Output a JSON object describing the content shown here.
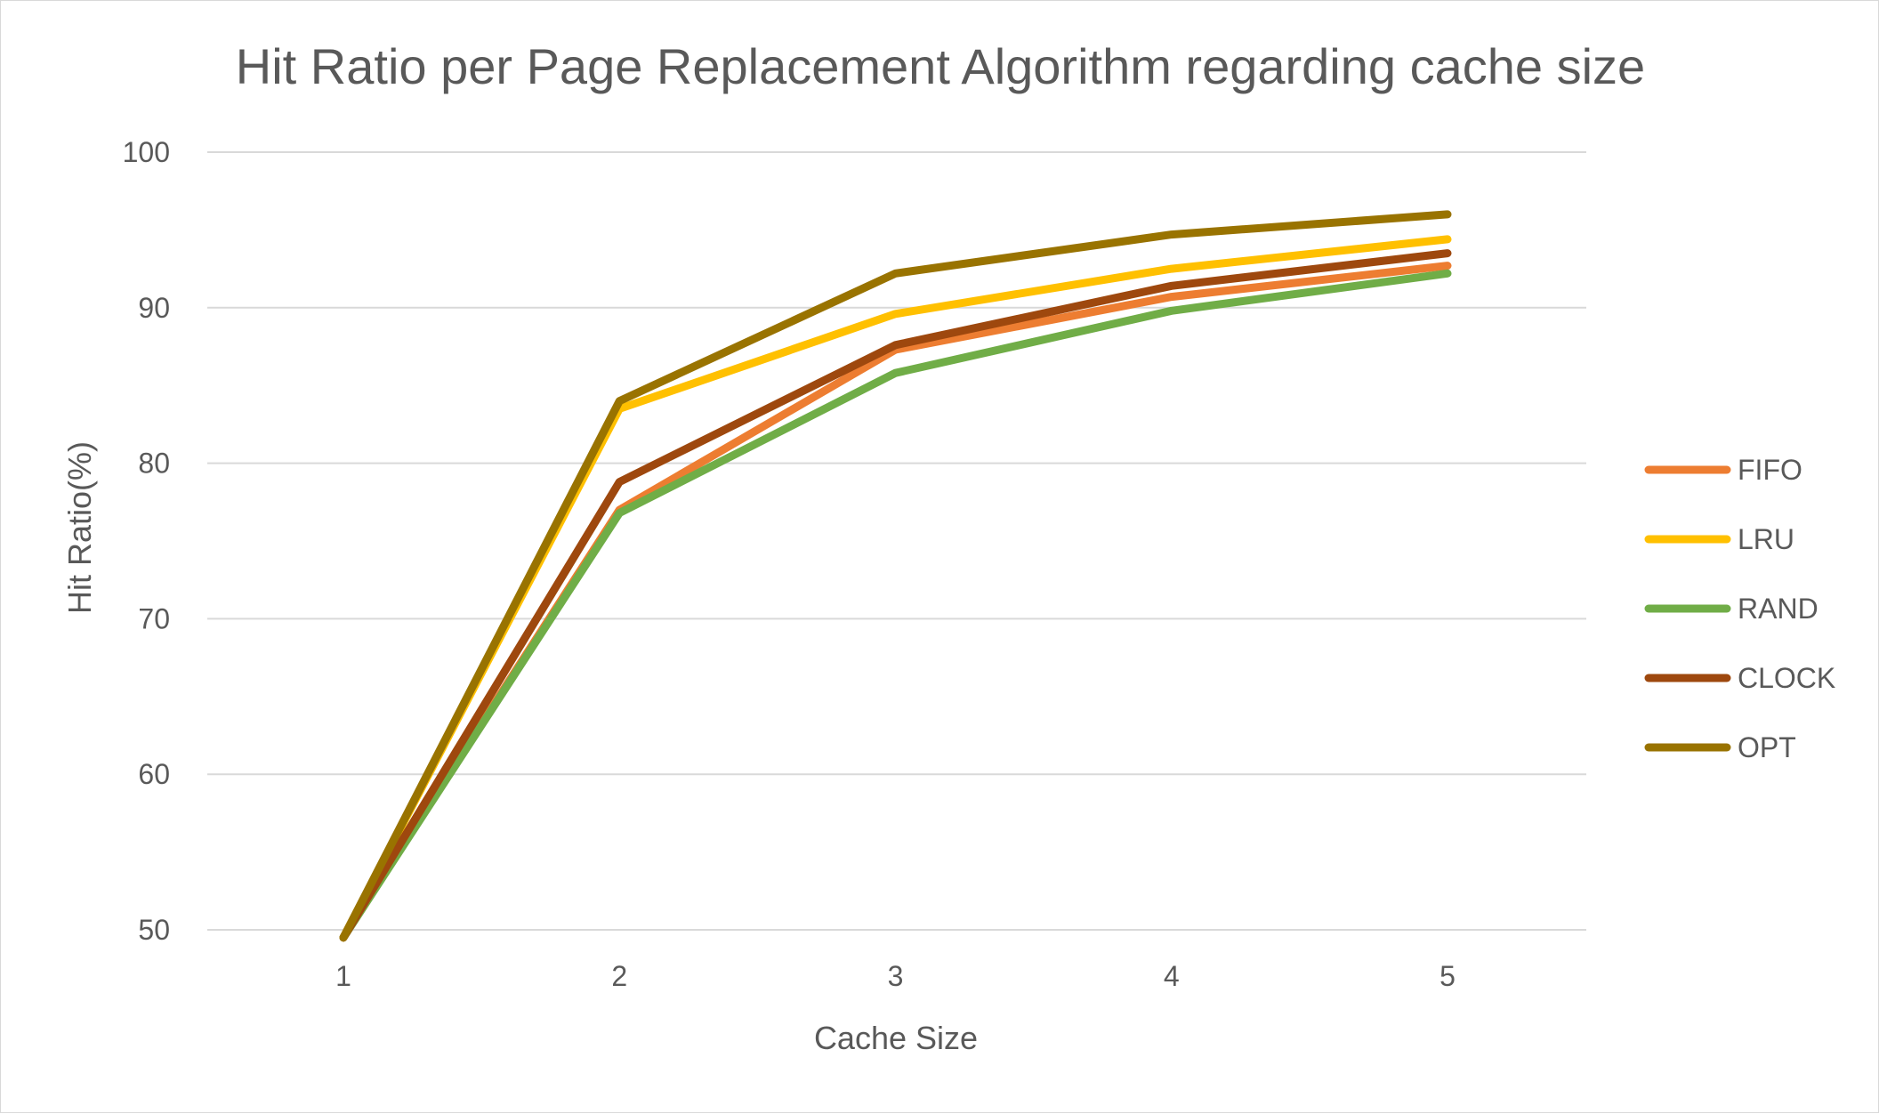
{
  "chart_data": {
    "type": "line",
    "title": "Hit Ratio per Page Replacement Algorithm regarding cache size",
    "xlabel": "Cache Size",
    "ylabel": "Hit Ratio(%)",
    "x": [
      1,
      2,
      3,
      4,
      5
    ],
    "x_tick_labels": [
      "1",
      "2",
      "3",
      "4",
      "5"
    ],
    "ylim": [
      50,
      100
    ],
    "y_ticks": [
      50,
      60,
      70,
      80,
      90,
      100
    ],
    "y_tick_labels": [
      "50",
      "60",
      "70",
      "80",
      "90",
      "100"
    ],
    "grid": true,
    "legend_position": "right",
    "series": [
      {
        "name": "FIFO",
        "color": "#ED7D31",
        "values": [
          49.5,
          77.0,
          87.3,
          90.7,
          92.7
        ]
      },
      {
        "name": "LRU",
        "color": "#FFC000",
        "values": [
          49.5,
          83.5,
          89.6,
          92.5,
          94.4
        ]
      },
      {
        "name": "RAND",
        "color": "#70AD47",
        "values": [
          49.5,
          76.8,
          85.8,
          89.8,
          92.2
        ]
      },
      {
        "name": "CLOCK",
        "color": "#9E480E",
        "values": [
          49.5,
          78.8,
          87.6,
          91.4,
          93.5
        ]
      },
      {
        "name": "OPT",
        "color": "#997300",
        "values": [
          49.5,
          84.0,
          92.2,
          94.7,
          96.0
        ]
      }
    ]
  }
}
